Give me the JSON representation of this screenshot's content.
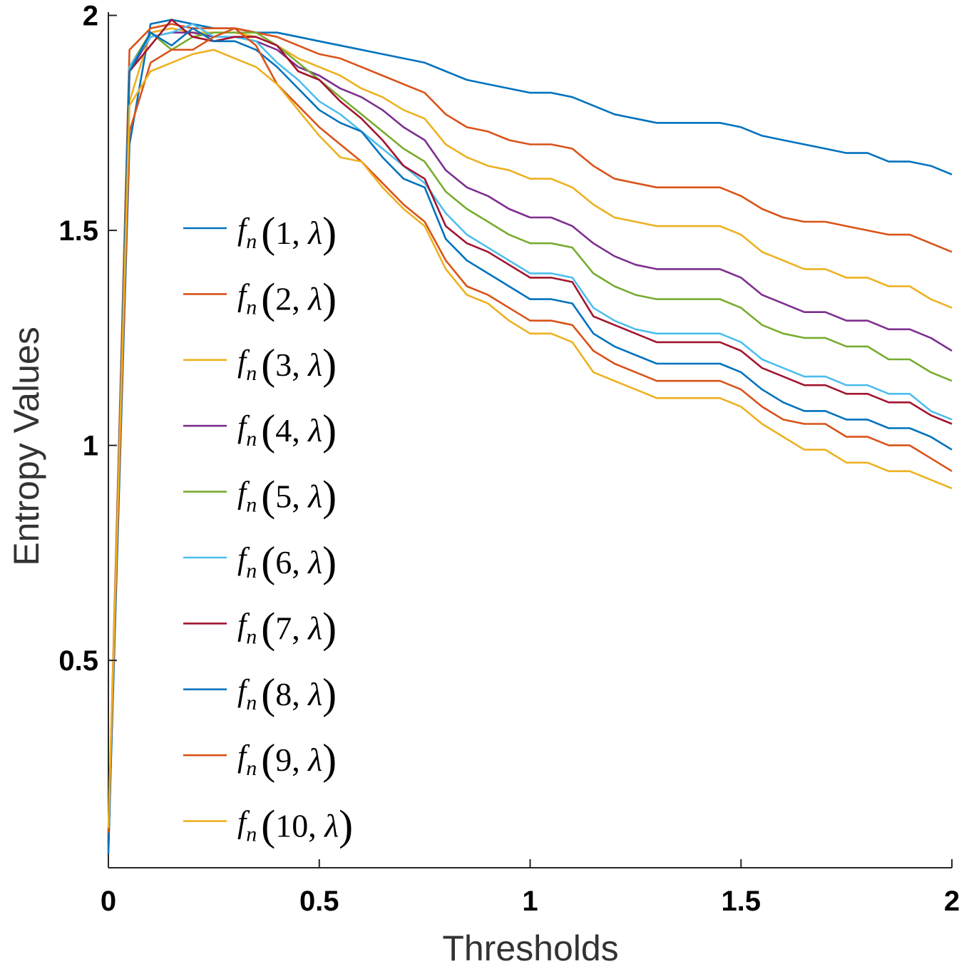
{
  "chart_data": {
    "type": "line",
    "title": "",
    "xlabel": "Thresholds",
    "ylabel": "Entropy Values",
    "xlim": [
      0,
      2
    ],
    "ylim": [
      0.0177,
      2.0076
    ],
    "x_ticks": [
      "0",
      "0.5",
      "1",
      "1.5",
      "2"
    ],
    "y_ticks": [
      "0.5",
      "1",
      "1.5",
      "2"
    ],
    "x_tick_values": [
      0,
      0.5,
      1,
      1.5,
      2
    ],
    "y_tick_values": [
      0.5,
      1,
      1.5,
      2
    ],
    "grid": false,
    "legend_position": "left-center",
    "x": [
      0,
      0.05,
      0.1,
      0.15,
      0.2,
      0.25,
      0.3,
      0.35,
      0.4,
      0.45,
      0.5,
      0.55,
      0.6,
      0.65,
      0.7,
      0.75,
      0.8,
      0.85,
      0.9,
      0.95,
      1.0,
      1.05,
      1.1,
      1.15,
      1.2,
      1.25,
      1.3,
      1.35,
      1.4,
      1.45,
      1.5,
      1.55,
      1.6,
      1.65,
      1.7,
      1.75,
      1.8,
      1.85,
      1.9,
      1.95,
      2.0
    ],
    "series": [
      {
        "name": "1",
        "color": "#0072bd",
        "values": [
          0.06,
          1.7,
          1.98,
          1.99,
          1.98,
          1.97,
          1.97,
          1.96,
          1.96,
          1.95,
          1.94,
          1.93,
          1.92,
          1.91,
          1.9,
          1.89,
          1.87,
          1.85,
          1.84,
          1.83,
          1.82,
          1.82,
          1.81,
          1.79,
          1.77,
          1.76,
          1.75,
          1.75,
          1.75,
          1.75,
          1.74,
          1.72,
          1.71,
          1.7,
          1.69,
          1.68,
          1.68,
          1.66,
          1.66,
          1.65,
          1.63
        ]
      },
      {
        "name": "2",
        "color": "#d95319",
        "values": [
          0.09,
          1.92,
          1.97,
          1.98,
          1.97,
          1.97,
          1.97,
          1.96,
          1.95,
          1.93,
          1.91,
          1.9,
          1.88,
          1.86,
          1.84,
          1.82,
          1.77,
          1.74,
          1.73,
          1.71,
          1.7,
          1.7,
          1.69,
          1.65,
          1.62,
          1.61,
          1.6,
          1.6,
          1.6,
          1.6,
          1.58,
          1.55,
          1.53,
          1.52,
          1.52,
          1.51,
          1.5,
          1.49,
          1.49,
          1.47,
          1.45
        ]
      },
      {
        "name": "3",
        "color": "#edb120",
        "values": [
          0.1,
          1.8,
          1.96,
          1.97,
          1.96,
          1.96,
          1.96,
          1.95,
          1.93,
          1.9,
          1.88,
          1.86,
          1.83,
          1.81,
          1.78,
          1.76,
          1.7,
          1.67,
          1.65,
          1.64,
          1.62,
          1.62,
          1.6,
          1.56,
          1.53,
          1.52,
          1.51,
          1.51,
          1.51,
          1.51,
          1.49,
          1.45,
          1.43,
          1.41,
          1.41,
          1.39,
          1.39,
          1.37,
          1.37,
          1.34,
          1.32
        ]
      },
      {
        "name": "4",
        "color": "#7e2f8e",
        "values": [
          0.08,
          1.87,
          1.95,
          1.96,
          1.96,
          1.95,
          1.95,
          1.94,
          1.92,
          1.88,
          1.86,
          1.83,
          1.81,
          1.78,
          1.74,
          1.71,
          1.64,
          1.6,
          1.58,
          1.55,
          1.53,
          1.53,
          1.51,
          1.47,
          1.44,
          1.42,
          1.41,
          1.41,
          1.41,
          1.41,
          1.39,
          1.35,
          1.33,
          1.31,
          1.31,
          1.29,
          1.29,
          1.27,
          1.27,
          1.25,
          1.22
        ]
      },
      {
        "name": "5",
        "color": "#77ac30",
        "values": [
          0.07,
          1.88,
          1.96,
          1.92,
          1.95,
          1.96,
          1.96,
          1.96,
          1.93,
          1.89,
          1.85,
          1.81,
          1.77,
          1.73,
          1.69,
          1.66,
          1.59,
          1.55,
          1.52,
          1.49,
          1.47,
          1.47,
          1.46,
          1.4,
          1.37,
          1.35,
          1.34,
          1.34,
          1.34,
          1.34,
          1.32,
          1.28,
          1.26,
          1.25,
          1.25,
          1.23,
          1.23,
          1.2,
          1.2,
          1.17,
          1.15
        ]
      },
      {
        "name": "6",
        "color": "#4dbeee",
        "values": [
          0.06,
          1.88,
          1.95,
          1.96,
          1.98,
          1.95,
          1.95,
          1.94,
          1.89,
          1.85,
          1.8,
          1.77,
          1.73,
          1.69,
          1.65,
          1.61,
          1.54,
          1.49,
          1.46,
          1.43,
          1.4,
          1.4,
          1.39,
          1.32,
          1.29,
          1.27,
          1.26,
          1.26,
          1.26,
          1.26,
          1.24,
          1.2,
          1.18,
          1.16,
          1.16,
          1.14,
          1.14,
          1.12,
          1.12,
          1.08,
          1.06
        ]
      },
      {
        "name": "7",
        "color": "#a2142f",
        "values": [
          0.07,
          1.87,
          1.93,
          1.99,
          1.95,
          1.94,
          1.95,
          1.95,
          1.93,
          1.87,
          1.85,
          1.8,
          1.76,
          1.71,
          1.65,
          1.62,
          1.51,
          1.47,
          1.45,
          1.42,
          1.39,
          1.39,
          1.38,
          1.3,
          1.28,
          1.26,
          1.24,
          1.24,
          1.24,
          1.24,
          1.22,
          1.18,
          1.16,
          1.14,
          1.14,
          1.12,
          1.12,
          1.1,
          1.1,
          1.07,
          1.05
        ]
      },
      {
        "name": "8",
        "color": "#0072bd",
        "values": [
          0.05,
          1.87,
          1.96,
          1.93,
          1.97,
          1.94,
          1.94,
          1.92,
          1.88,
          1.83,
          1.78,
          1.75,
          1.73,
          1.67,
          1.62,
          1.6,
          1.48,
          1.43,
          1.4,
          1.37,
          1.34,
          1.34,
          1.33,
          1.26,
          1.23,
          1.21,
          1.19,
          1.19,
          1.19,
          1.19,
          1.17,
          1.13,
          1.1,
          1.08,
          1.08,
          1.06,
          1.06,
          1.04,
          1.04,
          1.02,
          0.99
        ]
      },
      {
        "name": "9",
        "color": "#d95319",
        "values": [
          0.1,
          1.73,
          1.89,
          1.92,
          1.92,
          1.95,
          1.97,
          1.93,
          1.84,
          1.79,
          1.74,
          1.7,
          1.66,
          1.61,
          1.56,
          1.52,
          1.43,
          1.37,
          1.35,
          1.32,
          1.29,
          1.29,
          1.28,
          1.22,
          1.19,
          1.17,
          1.15,
          1.15,
          1.15,
          1.15,
          1.13,
          1.09,
          1.06,
          1.05,
          1.05,
          1.02,
          1.02,
          1.0,
          1.0,
          0.97,
          0.94
        ]
      },
      {
        "name": "10",
        "color": "#edb120",
        "values": [
          0.11,
          1.79,
          1.87,
          1.89,
          1.91,
          1.92,
          1.9,
          1.88,
          1.84,
          1.78,
          1.72,
          1.67,
          1.66,
          1.6,
          1.55,
          1.51,
          1.41,
          1.35,
          1.33,
          1.29,
          1.26,
          1.26,
          1.24,
          1.17,
          1.15,
          1.13,
          1.11,
          1.11,
          1.11,
          1.11,
          1.09,
          1.05,
          1.02,
          0.99,
          0.99,
          0.96,
          0.96,
          0.94,
          0.94,
          0.92,
          0.9
        ]
      }
    ],
    "legend": {
      "function": "f",
      "subscript": "n",
      "second_arg": "λ",
      "separator": ", "
    }
  }
}
